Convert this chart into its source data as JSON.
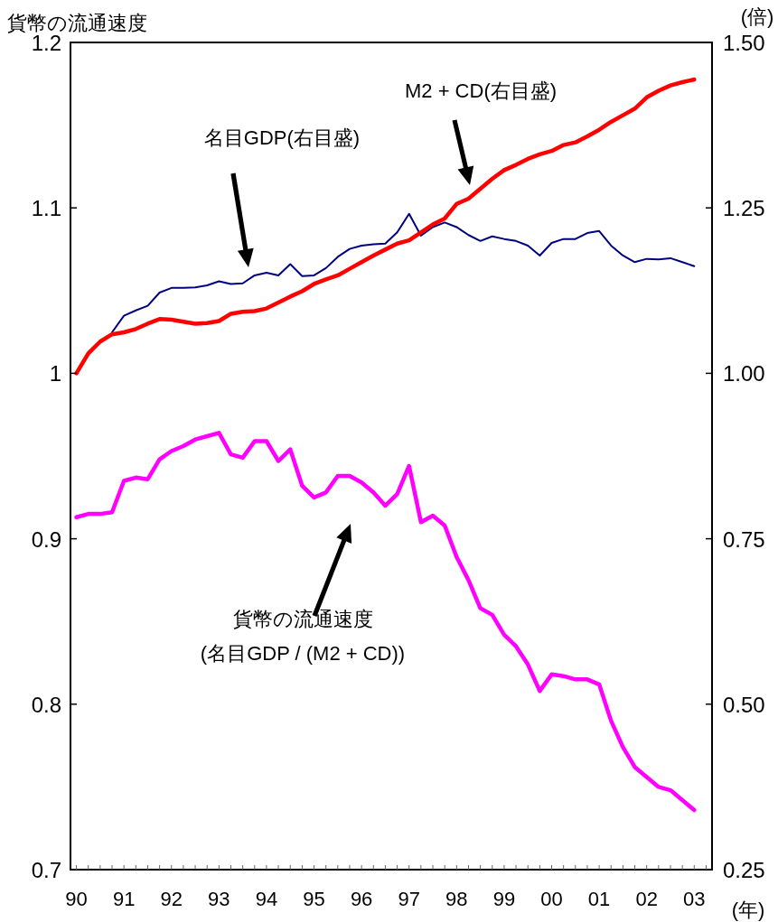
{
  "chart_data": {
    "type": "line",
    "ylabel": "貨幣の流通速度",
    "y2label": "(倍)",
    "xlabel": "(年)",
    "x": [
      1990,
      1990.25,
      1990.5,
      1990.75,
      1991,
      1991.25,
      1991.5,
      1991.75,
      1992,
      1992.25,
      1992.5,
      1992.75,
      1993,
      1993.25,
      1993.5,
      1993.75,
      1994,
      1994.25,
      1994.5,
      1994.75,
      1995,
      1995.25,
      1995.5,
      1995.75,
      1996,
      1996.25,
      1996.5,
      1996.75,
      1997,
      1997.25,
      1997.5,
      1997.75,
      1998,
      1998.25,
      1998.5,
      1998.75,
      1999,
      1999.25,
      1999.5,
      1999.75,
      2000,
      2000.25,
      2000.5,
      2000.75,
      2001,
      2001.25,
      2001.5,
      2001.75,
      2002,
      2002.25,
      2002.5,
      2002.75,
      2003
    ],
    "series": [
      {
        "color": "#000080",
        "axis": "y2",
        "values": [
          null,
          null,
          null,
          1.062,
          1.087,
          1.095,
          1.102,
          1.122,
          1.129,
          1.129,
          1.13,
          1.133,
          1.139,
          1.135,
          1.136,
          1.148,
          1.152,
          1.148,
          1.165,
          1.147,
          1.148,
          1.159,
          1.176,
          1.188,
          1.193,
          1.195,
          1.196,
          1.213,
          1.241,
          1.208,
          1.221,
          1.228,
          1.221,
          1.209,
          1.2,
          1.207,
          1.203,
          1.2,
          1.193,
          1.178,
          1.197,
          1.203,
          1.203,
          1.212,
          1.215,
          1.193,
          1.178,
          1.168,
          1.173,
          1.172,
          1.174,
          1.168,
          1.162
        ]
      },
      {
        "color": "#ff0000",
        "axis": "y2",
        "values": [
          1.0,
          1.03,
          1.048,
          1.059,
          1.062,
          1.067,
          1.075,
          1.082,
          1.081,
          1.078,
          1.075,
          1.076,
          1.079,
          1.09,
          1.093,
          1.094,
          1.098,
          1.107,
          1.116,
          1.124,
          1.135,
          1.142,
          1.148,
          1.158,
          1.168,
          1.178,
          1.187,
          1.196,
          1.201,
          1.213,
          1.225,
          1.234,
          1.256,
          1.264,
          1.279,
          1.294,
          1.307,
          1.315,
          1.324,
          1.331,
          1.336,
          1.345,
          1.349,
          1.358,
          1.368,
          1.38,
          1.39,
          1.4,
          1.417,
          1.427,
          1.435,
          1.44,
          1.444
        ]
      },
      {
        "color": "#ff00ff",
        "axis": "y",
        "values": [
          0.913,
          0.915,
          0.915,
          0.916,
          0.935,
          0.937,
          0.936,
          0.948,
          0.953,
          0.956,
          0.96,
          0.962,
          0.964,
          0.951,
          0.949,
          0.959,
          0.959,
          0.947,
          0.954,
          0.932,
          0.925,
          0.928,
          0.938,
          0.938,
          0.934,
          0.928,
          0.92,
          0.927,
          0.944,
          0.91,
          0.914,
          0.908,
          0.889,
          0.875,
          0.858,
          0.854,
          0.842,
          0.835,
          0.824,
          0.808,
          0.818,
          0.817,
          0.815,
          0.815,
          0.812,
          0.79,
          0.774,
          0.762,
          0.756,
          0.75,
          0.748,
          0.742,
          0.736
        ]
      }
    ],
    "xlim": [
      1989.875,
      2003.375
    ],
    "xticks": [
      {
        "value": 1990,
        "label": "90"
      },
      {
        "value": 1990.25,
        "label": null
      },
      {
        "value": 1990.5,
        "label": null
      },
      {
        "value": 1990.75,
        "label": null
      },
      {
        "value": 1991,
        "label": "91"
      },
      {
        "value": 1991.25,
        "label": null
      },
      {
        "value": 1991.5,
        "label": null
      },
      {
        "value": 1991.75,
        "label": null
      },
      {
        "value": 1992,
        "label": "92"
      },
      {
        "value": 1992.25,
        "label": null
      },
      {
        "value": 1992.5,
        "label": null
      },
      {
        "value": 1992.75,
        "label": null
      },
      {
        "value": 1993,
        "label": "93"
      },
      {
        "value": 1993.25,
        "label": null
      },
      {
        "value": 1993.5,
        "label": null
      },
      {
        "value": 1993.75,
        "label": null
      },
      {
        "value": 1994,
        "label": "94"
      },
      {
        "value": 1994.25,
        "label": null
      },
      {
        "value": 1994.5,
        "label": null
      },
      {
        "value": 1994.75,
        "label": null
      },
      {
        "value": 1995,
        "label": "95"
      },
      {
        "value": 1995.25,
        "label": null
      },
      {
        "value": 1995.5,
        "label": null
      },
      {
        "value": 1995.75,
        "label": null
      },
      {
        "value": 1996,
        "label": "96"
      },
      {
        "value": 1996.25,
        "label": null
      },
      {
        "value": 1996.5,
        "label": null
      },
      {
        "value": 1996.75,
        "label": null
      },
      {
        "value": 1997,
        "label": "97"
      },
      {
        "value": 1997.25,
        "label": null
      },
      {
        "value": 1997.5,
        "label": null
      },
      {
        "value": 1997.75,
        "label": null
      },
      {
        "value": 1998,
        "label": "98"
      },
      {
        "value": 1998.25,
        "label": null
      },
      {
        "value": 1998.5,
        "label": null
      },
      {
        "value": 1998.75,
        "label": null
      },
      {
        "value": 1999,
        "label": "99"
      },
      {
        "value": 1999.25,
        "label": null
      },
      {
        "value": 1999.5,
        "label": null
      },
      {
        "value": 1999.75,
        "label": null
      },
      {
        "value": 2000,
        "label": "00"
      },
      {
        "value": 2000.25,
        "label": null
      },
      {
        "value": 2000.5,
        "label": null
      },
      {
        "value": 2000.75,
        "label": null
      },
      {
        "value": 2001,
        "label": "01"
      },
      {
        "value": 2001.25,
        "label": null
      },
      {
        "value": 2001.5,
        "label": null
      },
      {
        "value": 2001.75,
        "label": null
      },
      {
        "value": 2002,
        "label": "02"
      },
      {
        "value": 2002.25,
        "label": null
      },
      {
        "value": 2002.5,
        "label": null
      },
      {
        "value": 2002.75,
        "label": null
      },
      {
        "value": 2003,
        "label": "03"
      },
      {
        "value": 2003.25,
        "label": null
      }
    ],
    "ylim": [
      0.7,
      1.2
    ],
    "yticks": [
      0.7,
      0.8,
      0.9,
      1,
      1.1,
      1.2
    ],
    "y2lim": [
      0.25,
      1.5
    ],
    "y2ticks": [
      {
        "value": 0.25,
        "label": "0.25"
      },
      {
        "value": 0.5,
        "label": "0.50"
      },
      {
        "value": 0.75,
        "label": "0.75"
      },
      {
        "value": 1,
        "label": "1.00"
      },
      {
        "value": 1.25,
        "label": "1.25"
      },
      {
        "value": 1.5,
        "label": "1.50"
      }
    ],
    "grid": false,
    "marker": "none",
    "line_style": "solid",
    "annotations": [
      "名目GDP(右目盛)",
      "M2 + CD(右目盛)",
      "貨幣の流通速度\n(名目GDP / (M2 + CD))"
    ]
  }
}
